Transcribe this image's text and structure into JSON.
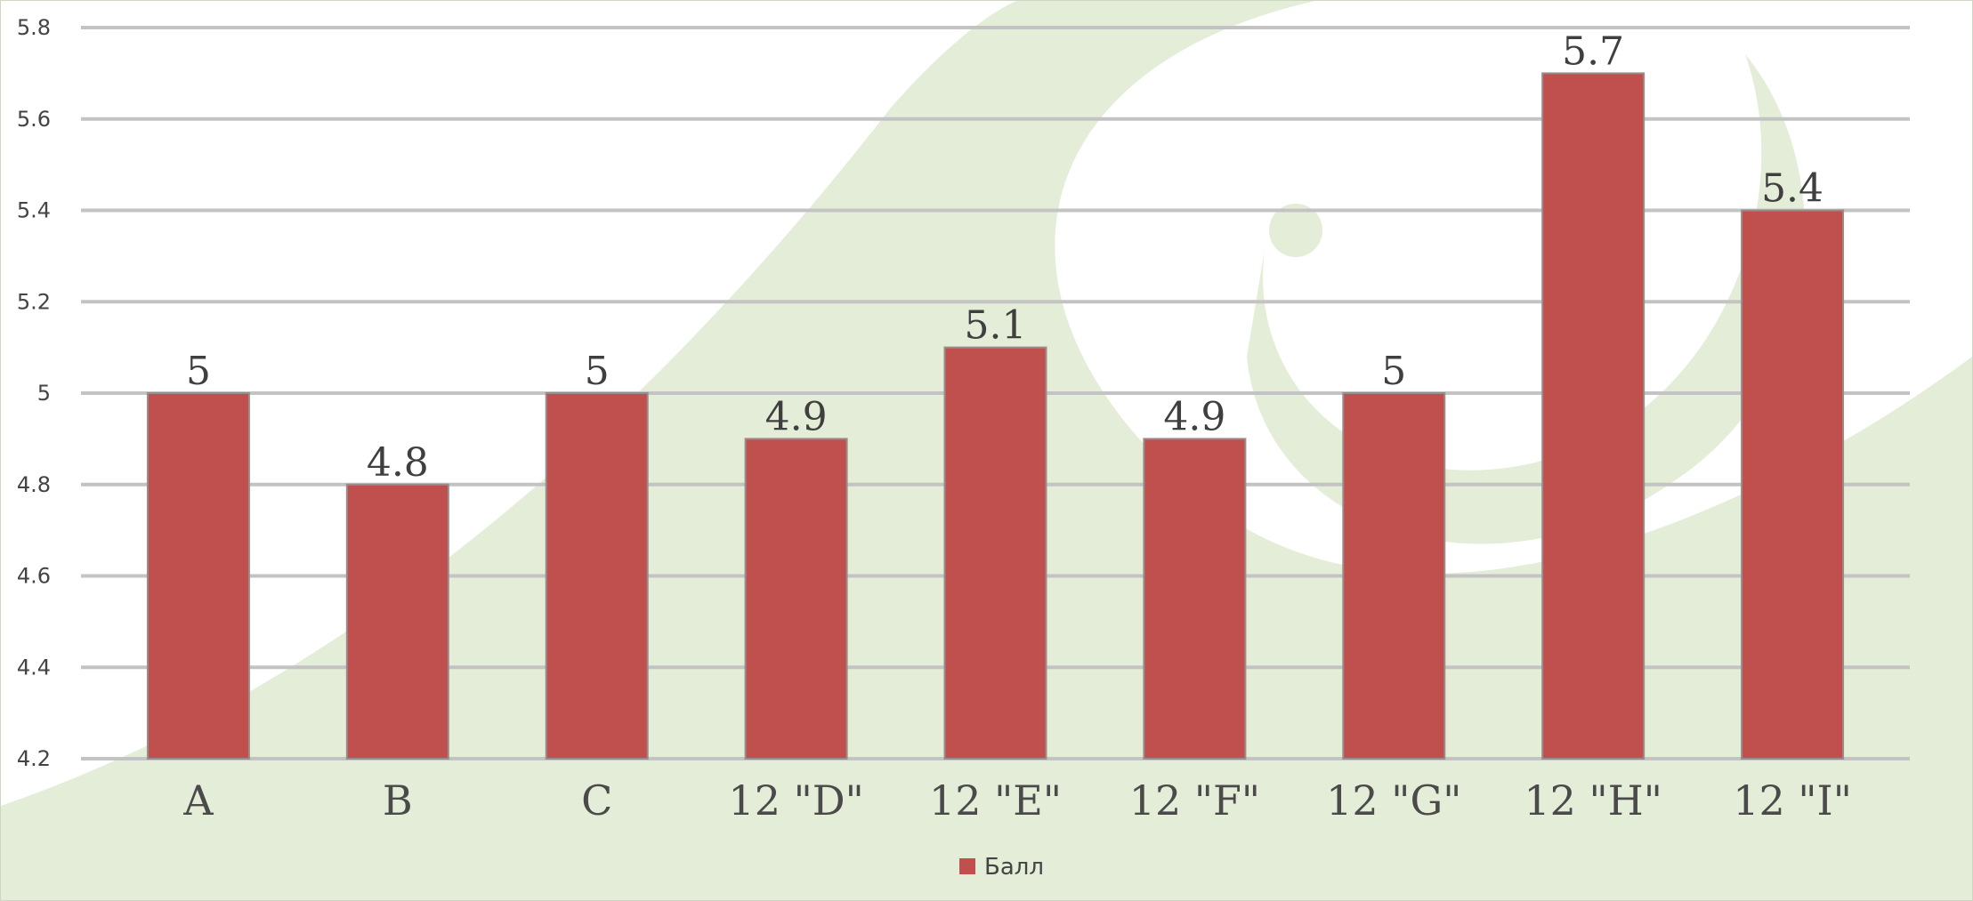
{
  "colors": {
    "bar_fill": "#c0504d",
    "bar_stroke": "#9a8c8a",
    "grid": "#c3c3c3",
    "background_swirl": "#e4edd7",
    "frame": "#cfd6c4"
  },
  "chart_data": {
    "type": "bar",
    "categories": [
      "A",
      "B",
      "C",
      "12 \"D\"",
      "12 \"E\"",
      "12 \"F\"",
      "12 \"G\"",
      "12 \"H\"",
      "12 \"I\""
    ],
    "series": [
      {
        "name": "Балл",
        "values": [
          5,
          4.8,
          5,
          4.9,
          5.1,
          4.9,
          5,
          5.7,
          5.4
        ]
      }
    ],
    "data_labels": [
      "5",
      "4.8",
      "5",
      "4.9",
      "5.1",
      "4.9",
      "5",
      "5.7",
      "5.4"
    ],
    "y_ticks": [
      "4.2",
      "4.4",
      "4.6",
      "4.8",
      "5",
      "5.2",
      "5.4",
      "5.6",
      "5.8"
    ],
    "ylim": [
      4.2,
      5.8
    ],
    "title": "",
    "xlabel": "",
    "ylabel": "",
    "grid": "horizontal",
    "legend_position": "bottom-center"
  }
}
